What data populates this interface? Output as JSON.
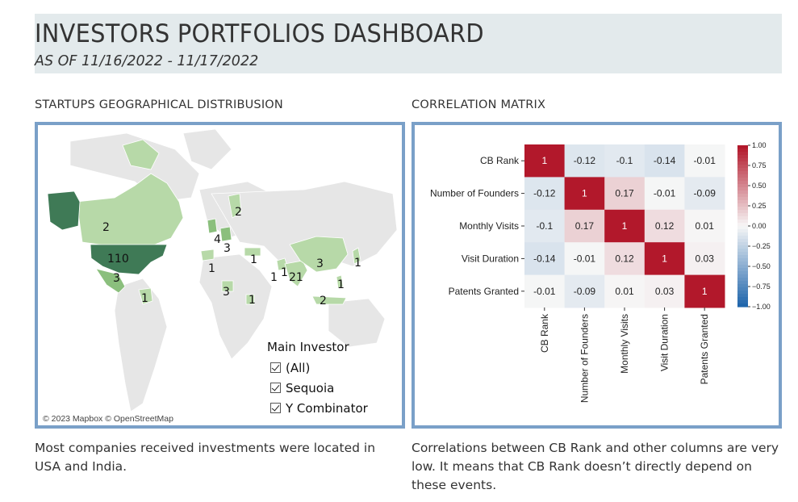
{
  "header": {
    "title": "INVESTORS PORTFOLIOS DASHBOARD",
    "subtitle": "AS OF 11/16/2022 - 11/17/2022"
  },
  "map_section": {
    "title": "STARTUPS GEOGRAPHICAL DISTRIBUSION",
    "caption": "Most companies received investments were located in USA and India.",
    "attribution": "© 2023 Mapbox  © OpenStreetMap",
    "labels": [
      {
        "id": "usa",
        "text": "110"
      },
      {
        "id": "canada",
        "text": "2"
      },
      {
        "id": "mexico",
        "text": "3"
      },
      {
        "id": "colombia",
        "text": "1"
      },
      {
        "id": "finland",
        "text": "2"
      },
      {
        "id": "uk",
        "text": "4"
      },
      {
        "id": "germany",
        "text": "3"
      },
      {
        "id": "spain",
        "text": "1"
      },
      {
        "id": "turkey",
        "text": "1"
      },
      {
        "id": "nigeria",
        "text": "3"
      },
      {
        "id": "kenya",
        "text": "1"
      },
      {
        "id": "uae",
        "text": "1"
      },
      {
        "id": "pakistan",
        "text": "1"
      },
      {
        "id": "india",
        "text": "21"
      },
      {
        "id": "china",
        "text": "3"
      },
      {
        "id": "japan",
        "text": "1"
      },
      {
        "id": "philippines",
        "text": "1"
      },
      {
        "id": "indonesia",
        "text": "2"
      }
    ],
    "legend": {
      "title": "Main Investor",
      "items": [
        "(All)",
        "Sequoia",
        "Y Combinator"
      ]
    },
    "colors": {
      "land": "#e6e6e6",
      "low": "#b7d9a8",
      "mid": "#8bbf7d",
      "high": "#3f7a56"
    }
  },
  "corr_section": {
    "title": "CORRELATION MATRIX",
    "caption": "Correlations between CB Rank and other columns are very low. It means that CB Rank doesn’t directly depend on these events."
  },
  "chart_data": {
    "type": "heatmap",
    "title": "",
    "rows": [
      "CB Rank",
      "Number of Founders",
      "Monthly Visits",
      "Visit Duration",
      "Patents Granted"
    ],
    "columns": [
      "CB Rank",
      "Number of Founders",
      "Monthly Visits",
      "Visit Duration",
      "Patents Granted"
    ],
    "values": [
      [
        1,
        -0.12,
        -0.1,
        -0.14,
        -0.01
      ],
      [
        -0.12,
        1,
        0.17,
        -0.01,
        -0.09
      ],
      [
        -0.1,
        0.17,
        1,
        0.12,
        0.01
      ],
      [
        -0.14,
        -0.01,
        0.12,
        1,
        0.03
      ],
      [
        -0.01,
        -0.09,
        0.01,
        0.03,
        1
      ]
    ],
    "colorbar": {
      "ticks": [
        "1.00",
        "0.75",
        "0.50",
        "0.25",
        "0.00",
        "−0.25",
        "−0.50",
        "−0.75",
        "−1.00"
      ],
      "range": [
        -1,
        1
      ],
      "colormap": "RdBu_r"
    }
  }
}
